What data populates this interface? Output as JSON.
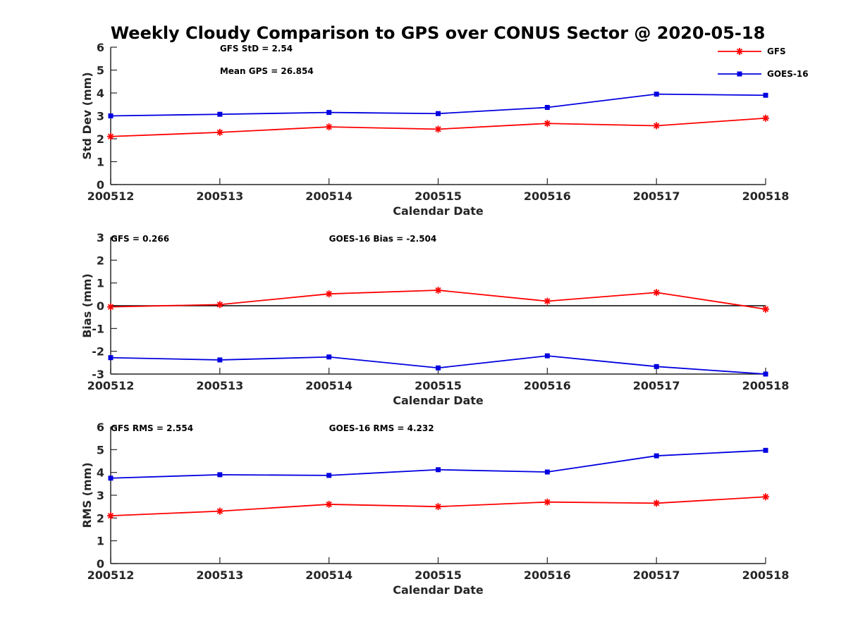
{
  "colors": {
    "gfs": "#ff0000",
    "goes": "#0000e0",
    "axis": "#262626",
    "zero_line": "#000000"
  },
  "chart_data": {
    "title": "Weekly Cloudy Comparison to GPS over CONUS Sector @ 2020-05-18",
    "legend": {
      "placement": "top-right",
      "entries": [
        {
          "name": "GFS",
          "marker": "asterisk",
          "color": "#ff0000"
        },
        {
          "name": "GOES-16",
          "marker": "square",
          "color": "#0000e0"
        }
      ]
    },
    "panels": [
      {
        "type": "line",
        "ylabel": "Std Dev (mm)",
        "xlabel": "Calendar Date",
        "x": [
          "200512",
          "200513",
          "200514",
          "200515",
          "200516",
          "200517",
          "200518"
        ],
        "ylim": [
          0,
          6
        ],
        "yticks": [
          "0",
          "1",
          "2",
          "3",
          "4",
          "5",
          "6"
        ],
        "zero_line": false,
        "series": [
          {
            "name": "GFS",
            "values": [
              2.1,
              2.28,
              2.52,
              2.42,
              2.67,
              2.57,
              2.9
            ]
          },
          {
            "name": "GOES-16",
            "values": [
              3.0,
              3.07,
              3.15,
              3.1,
              3.37,
              3.95,
              3.9
            ]
          }
        ],
        "annotations": [
          {
            "text": "GFS StD = 2.54",
            "x": "200513",
            "row": 0
          },
          {
            "text": "Mean GPS = 26.854",
            "x": "200513",
            "row": 1
          }
        ]
      },
      {
        "type": "line",
        "ylabel": "Bias (mm)",
        "xlabel": "Calendar Date",
        "x": [
          "200512",
          "200513",
          "200514",
          "200515",
          "200516",
          "200517",
          "200518"
        ],
        "ylim": [
          -3,
          3
        ],
        "yticks": [
          "-3",
          "-2",
          "-1",
          "0",
          "1",
          "2",
          "3"
        ],
        "zero_line": true,
        "series": [
          {
            "name": "GFS",
            "values": [
              -0.05,
              0.05,
              0.52,
              0.68,
              0.2,
              0.58,
              -0.15
            ]
          },
          {
            "name": "GOES-16",
            "values": [
              -2.28,
              -2.38,
              -2.25,
              -2.73,
              -2.2,
              -2.67,
              -3.0
            ]
          }
        ],
        "annotations": [
          {
            "text": "GFS = 0.266",
            "x": "200512",
            "row": 0
          },
          {
            "text": "GOES-16 Bias  = -2.504",
            "x": "200514",
            "row": 0
          }
        ]
      },
      {
        "type": "line",
        "ylabel": "RMS (mm)",
        "xlabel": "Calendar Date",
        "x": [
          "200512",
          "200513",
          "200514",
          "200515",
          "200516",
          "200517",
          "200518"
        ],
        "ylim": [
          0,
          6
        ],
        "yticks": [
          "0",
          "1",
          "2",
          "3",
          "4",
          "5",
          "6"
        ],
        "zero_line": false,
        "series": [
          {
            "name": "GFS",
            "values": [
              2.1,
              2.3,
              2.6,
              2.5,
              2.7,
              2.65,
              2.93
            ]
          },
          {
            "name": "GOES-16",
            "values": [
              3.75,
              3.9,
              3.87,
              4.12,
              4.02,
              4.73,
              4.97
            ]
          }
        ],
        "annotations": [
          {
            "text": "GFS RMS = 2.554",
            "x": "200512",
            "row": 0
          },
          {
            "text": "GOES-16 RMS = 4.232",
            "x": "200514",
            "row": 0
          }
        ]
      }
    ]
  }
}
